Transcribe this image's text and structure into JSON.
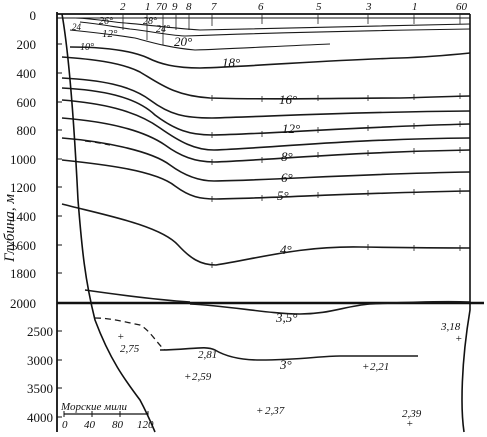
{
  "y_axis": {
    "label": "Глубина, м",
    "ticks_upper": [
      "0",
      "200",
      "400",
      "600",
      "800",
      "1000",
      "1200",
      "1400",
      "1600",
      "1800",
      "2000"
    ],
    "ticks_lower": [
      "2500",
      "3000",
      "3500",
      "4000"
    ]
  },
  "stations": [
    "2",
    "1",
    "70",
    "9",
    "8",
    "7",
    "6",
    "5",
    "3",
    "1",
    "60"
  ],
  "isotherm_labels": [
    "26°",
    "28°",
    "24°",
    "12°",
    "20°",
    "18°",
    "16°",
    "12°",
    "8°",
    "6°",
    "5°",
    "4°",
    "3,5°",
    "3°",
    "10°",
    "24"
  ],
  "point_values": [
    "2,75",
    "2,81",
    "2,59",
    "2,21",
    "3,18",
    "2,37",
    "2,39"
  ],
  "scale_bar": {
    "title": "Морские мили",
    "ticks": [
      "0",
      "40",
      "80",
      "120"
    ]
  }
}
